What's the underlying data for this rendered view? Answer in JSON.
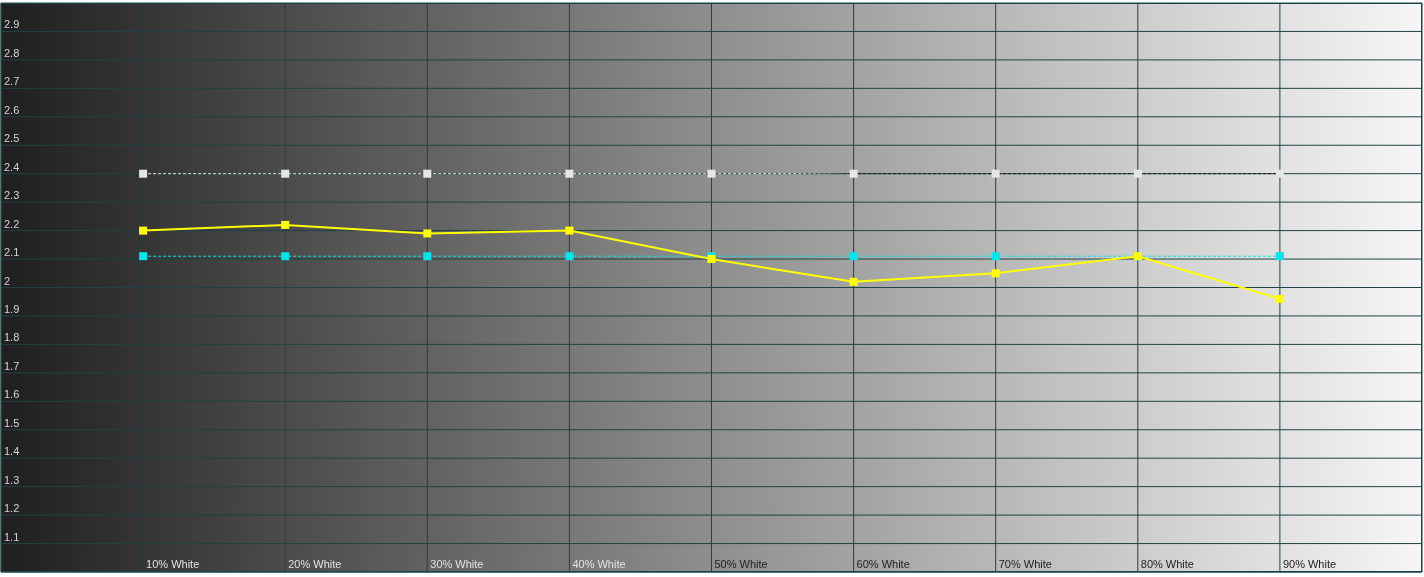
{
  "chart_data": {
    "type": "line",
    "categories": [
      "10% White",
      "20% White",
      "30% White",
      "40% White",
      "50% White",
      "60% White",
      "70% White",
      "80% White",
      "90% White"
    ],
    "series": [
      {
        "color": "#e6e6e6",
        "line_style": "dashed",
        "values": [
          2.4,
          2.4,
          2.4,
          2.4,
          2.4,
          2.4,
          2.4,
          2.4,
          2.4
        ]
      },
      {
        "color": "#00e5ee",
        "line_style": "dashed",
        "values": [
          2.11,
          2.11,
          2.11,
          2.11,
          2.11,
          2.11,
          2.11,
          2.11,
          2.11
        ]
      },
      {
        "color": "#ffff00",
        "line_style": "solid",
        "values": [
          2.2,
          2.22,
          2.19,
          2.2,
          2.1,
          2.02,
          2.05,
          2.11,
          1.96
        ]
      }
    ],
    "ylim": [
      1,
      3
    ],
    "yticks": [
      1.1,
      1.2,
      1.3,
      1.4,
      1.5,
      1.6,
      1.7,
      1.8,
      1.9,
      2,
      2.1,
      2.2,
      2.3,
      2.4,
      2.5,
      2.6,
      2.7,
      2.8,
      2.9
    ],
    "grid": true,
    "marker": "square"
  }
}
